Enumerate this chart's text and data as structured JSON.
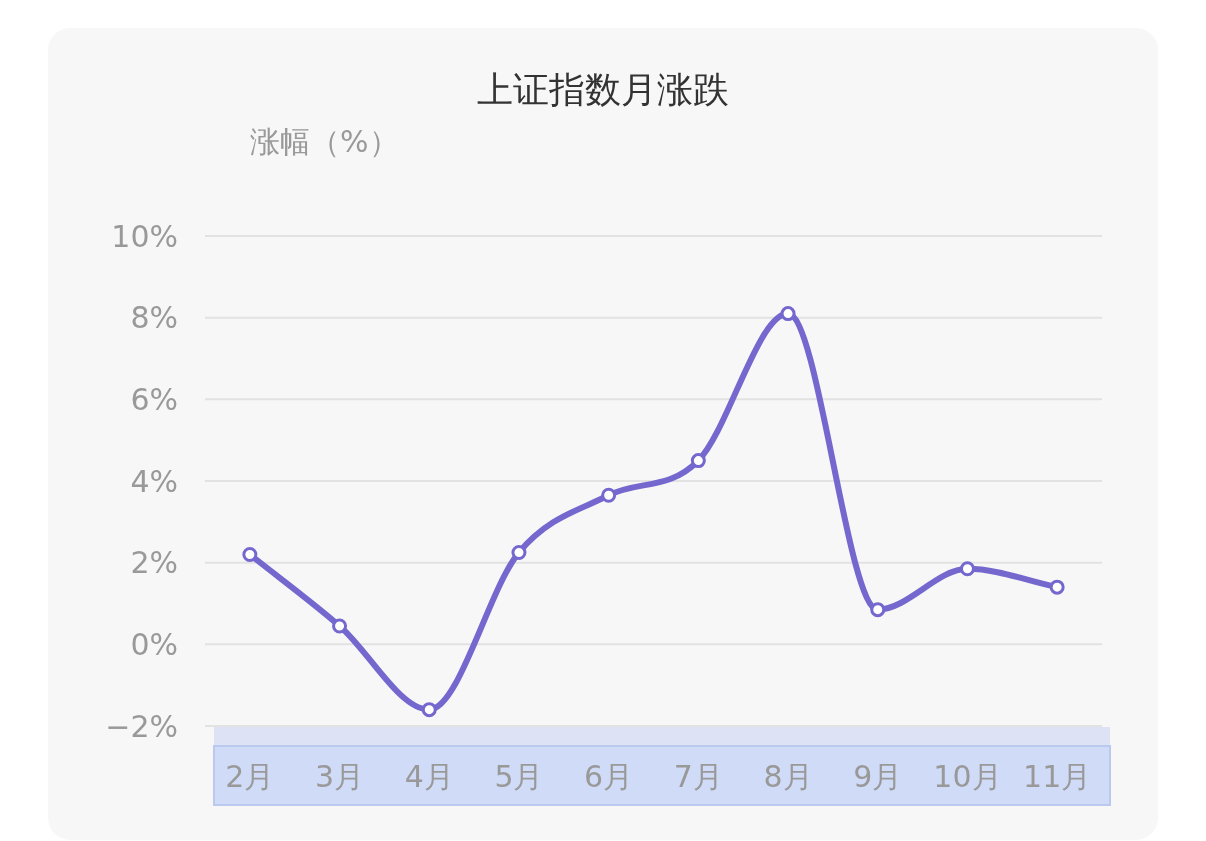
{
  "chart_data": {
    "type": "line",
    "title": "上证指数月涨跌",
    "ylabel": "涨幅（%）",
    "categories": [
      "2月",
      "3月",
      "4月",
      "5月",
      "6月",
      "7月",
      "8月",
      "9月",
      "10月",
      "11月"
    ],
    "series": [
      {
        "color": "#7468cf",
        "values": [
          2.2,
          0.45,
          -1.6,
          2.25,
          3.65,
          4.5,
          8.1,
          0.85,
          1.85,
          1.4
        ]
      }
    ],
    "ylim": [
      -2,
      10
    ],
    "yticks": [
      {
        "value": -2,
        "label": "−2%"
      },
      {
        "value": 0,
        "label": "0%"
      },
      {
        "value": 2,
        "label": "2%"
      },
      {
        "value": 4,
        "label": "4%"
      },
      {
        "value": 6,
        "label": "6%"
      },
      {
        "value": 8,
        "label": "8%"
      },
      {
        "value": 10,
        "label": "10%"
      }
    ],
    "grid": "y",
    "marker": "circle",
    "line_style": "solid"
  }
}
